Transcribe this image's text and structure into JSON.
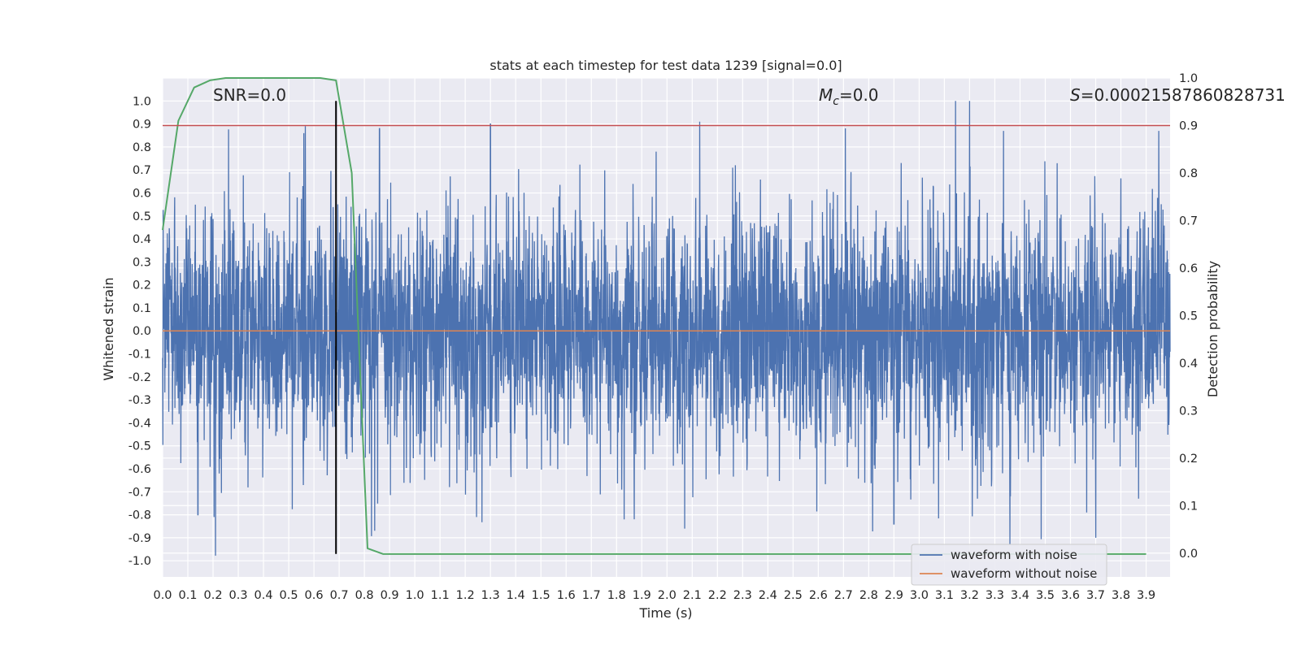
{
  "chart_data": {
    "type": "line",
    "title": "stats at each timestep for test data 1239 [signal=0.0]",
    "xlabel": "Time (s)",
    "ylabel": "Whitened strain",
    "y2label": "Detection probability",
    "xlim": [
      0.0,
      3.995
    ],
    "ylim": [
      -1.07,
      1.1
    ],
    "y2lim": [
      -0.05,
      1.0
    ],
    "x_ticks": [
      "0.0",
      "0.1",
      "0.2",
      "0.3",
      "0.4",
      "0.5",
      "0.6",
      "0.7",
      "0.8",
      "0.9",
      "1.0",
      "1.1",
      "1.2",
      "1.3",
      "1.4",
      "1.5",
      "1.6",
      "1.7",
      "1.8",
      "1.9",
      "2.0",
      "2.1",
      "2.2",
      "2.3",
      "2.4",
      "2.5",
      "2.6",
      "2.7",
      "2.8",
      "2.9",
      "3.0",
      "3.1",
      "3.2",
      "3.3",
      "3.4",
      "3.5",
      "3.6",
      "3.7",
      "3.8",
      "3.9"
    ],
    "y_ticks": [
      "1.0",
      "0.9",
      "0.8",
      "0.7",
      "0.6",
      "0.5",
      "0.4",
      "0.3",
      "0.2",
      "0.1",
      "0.0",
      "-0.1",
      "-0.2",
      "-0.3",
      "-0.4",
      "-0.5",
      "-0.6",
      "-0.7",
      "-0.8",
      "-0.9",
      "-1.0"
    ],
    "y2_ticks": [
      "1.0",
      "0.9",
      "0.8",
      "0.7",
      "0.6",
      "0.5",
      "0.4",
      "0.3",
      "0.2",
      "0.1",
      "0.0"
    ],
    "grid": true,
    "annotations": [
      {
        "key": "snr",
        "text": "SNR=0.0"
      },
      {
        "key": "mc",
        "prefix": "M",
        "sub": "c",
        "suffix": "=0.0"
      },
      {
        "key": "s",
        "prefix": "S",
        "suffix": "=0.00021587860828731"
      }
    ],
    "legend": {
      "placement": "lower-right",
      "entries": [
        "waveform with noise",
        "waveform without noise"
      ]
    },
    "series": [
      {
        "name": "waveform with noise",
        "color": "#4c72b0",
        "axis": "left",
        "x_range": [
          0.0,
          3.995
        ],
        "amplitude_range": [
          -1.0,
          1.0
        ],
        "note_style": "dense noise",
        "peaks": [
          {
            "x": 0.56,
            "y": 0.86
          },
          {
            "x": 0.86,
            "y": 0.88
          },
          {
            "x": 1.3,
            "y": 0.9
          },
          {
            "x": 2.13,
            "y": 0.91
          },
          {
            "x": 3.2,
            "y": 1.0
          },
          {
            "x": 3.95,
            "y": 0.87
          },
          {
            "x": 0.14,
            "y": -0.8
          },
          {
            "x": 1.83,
            "y": -0.82
          },
          {
            "x": 2.07,
            "y": -0.86
          },
          {
            "x": 2.9,
            "y": -0.84
          },
          {
            "x": 3.36,
            "y": -0.93
          },
          {
            "x": 3.7,
            "y": -0.9
          }
        ]
      },
      {
        "name": "waveform without noise",
        "color": "#dd8452",
        "axis": "left",
        "x": [
          0.0,
          3.995
        ],
        "y": [
          0.0,
          0.0
        ]
      },
      {
        "name": "Detection probability",
        "color": "#55a868",
        "axis": "right",
        "x": [
          0.0,
          0.0625,
          0.125,
          0.1875,
          0.25,
          0.3125,
          0.375,
          0.4375,
          0.5,
          0.5625,
          0.625,
          0.6875,
          0.75,
          0.8125,
          0.875,
          0.9375,
          1.0,
          3.9
        ],
        "y": [
          0.68,
          0.91,
          0.98,
          0.995,
          1.0,
          1.0,
          1.0,
          1.0,
          1.0,
          1.0,
          1.0,
          0.995,
          0.8,
          0.01,
          -0.002,
          -0.002,
          -0.002,
          -0.002
        ]
      }
    ],
    "reference_lines": [
      {
        "type": "horizontal",
        "axis": "right",
        "y": 0.9,
        "color": "#c44e52"
      },
      {
        "type": "vertical",
        "x": 0.6875,
        "y_from": -0.97,
        "y_to": 1.0,
        "color": "#000000"
      }
    ]
  }
}
